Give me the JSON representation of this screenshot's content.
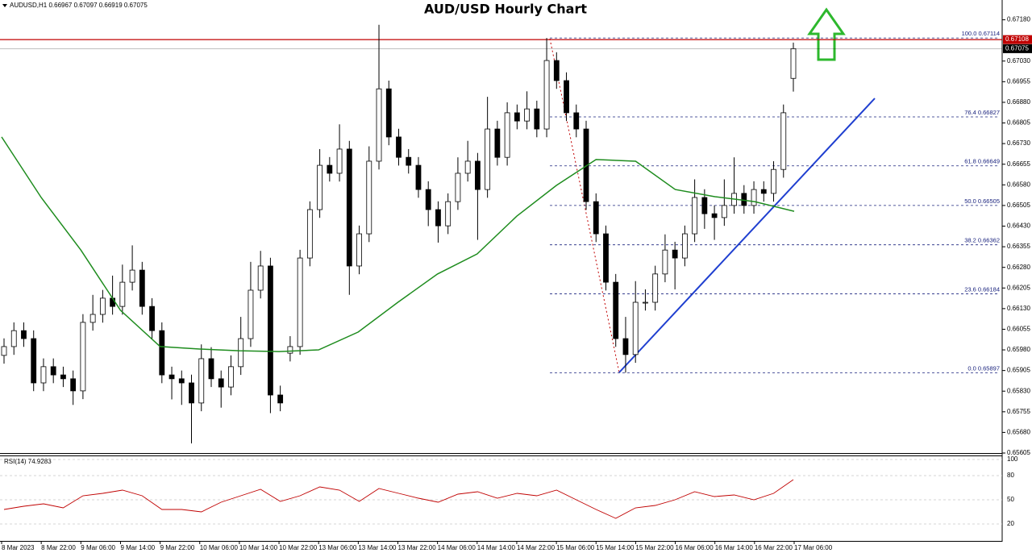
{
  "chart_data": {
    "type": "candlestick",
    "title": "AUD/USD Hourly Chart",
    "header": "AUDUSD,H1  0.66967 0.67097 0.66919 0.67075",
    "x_labels": [
      "8 Mar 2023",
      "8 Mar 22:00",
      "9 Mar 06:00",
      "9 Mar 14:00",
      "9 Mar 22:00",
      "10 Mar 06:00",
      "10 Mar 14:00",
      "10 Mar 22:00",
      "13 Mar 06:00",
      "13 Mar 14:00",
      "13 Mar 22:00",
      "14 Mar 06:00",
      "14 Mar 14:00",
      "14 Mar 22:00",
      "15 Mar 06:00",
      "15 Mar 14:00",
      "15 Mar 22:00",
      "16 Mar 06:00",
      "16 Mar 14:00",
      "16 Mar 22:00",
      "17 Mar 06:00"
    ],
    "ylim": [
      0.65605,
      0.67252
    ],
    "yticks": [
      {
        "value": 0.6718,
        "label": "0.67180"
      },
      {
        "value": 0.6703,
        "label": "0.67030"
      },
      0.66955,
      {
        "value": 0.6688,
        "label": "0.66880"
      },
      0.66805,
      {
        "value": 0.6673,
        "label": "0.66730"
      },
      0.66655,
      {
        "value": 0.6658,
        "label": "0.66580"
      },
      0.66505,
      {
        "value": 0.6643,
        "label": "0.66430"
      },
      0.66355,
      {
        "value": 0.6628,
        "label": "0.66280"
      },
      0.66205,
      {
        "value": 0.6613,
        "label": "0.66130"
      },
      0.66055,
      {
        "value": 0.6598,
        "label": "0.65980"
      },
      0.65905,
      {
        "value": 0.6583,
        "label": "0.65830"
      },
      0.65755,
      {
        "value": 0.6568,
        "label": "0.65680"
      },
      0.65605
    ],
    "up_color": "#ffffff",
    "down_color": "#000000",
    "candles": [
      [
        0.6596,
        0.66022,
        0.6593,
        0.65992
      ],
      [
        0.65992,
        0.6608,
        0.65962,
        0.6605
      ],
      [
        0.6605,
        0.6608,
        0.65991,
        0.66021
      ],
      [
        0.66021,
        0.66051,
        0.6583,
        0.6586
      ],
      [
        0.6586,
        0.65949,
        0.6583,
        0.65919
      ],
      [
        0.65919,
        0.65949,
        0.65859,
        0.65889
      ],
      [
        0.65889,
        0.65919,
        0.65845,
        0.65875
      ],
      [
        0.65875,
        0.65905,
        0.6578,
        0.65831
      ],
      [
        0.65831,
        0.6611,
        0.65801,
        0.6608
      ],
      [
        0.6608,
        0.6618,
        0.6605,
        0.66109
      ],
      [
        0.66109,
        0.66198,
        0.66079,
        0.66168
      ],
      [
        0.66168,
        0.6625,
        0.66108,
        0.66138
      ],
      [
        0.66138,
        0.6629,
        0.66108,
        0.66226
      ],
      [
        0.66226,
        0.6636,
        0.66196,
        0.6627
      ],
      [
        0.6627,
        0.663,
        0.66108,
        0.66138
      ],
      [
        0.66138,
        0.66168,
        0.6602,
        0.6605
      ],
      [
        0.6605,
        0.6608,
        0.65859,
        0.65889
      ],
      [
        0.65889,
        0.65919,
        0.658,
        0.65875
      ],
      [
        0.65875,
        0.65905,
        0.6578,
        0.6586
      ],
      [
        0.6586,
        0.6589,
        0.6564,
        0.65787
      ],
      [
        0.65787,
        0.66,
        0.65757,
        0.65948
      ],
      [
        0.65948,
        0.6599,
        0.65845,
        0.65875
      ],
      [
        0.65875,
        0.65905,
        0.6577,
        0.65845
      ],
      [
        0.65845,
        0.6596,
        0.65815,
        0.65919
      ],
      [
        0.65919,
        0.661,
        0.65889,
        0.66021
      ],
      [
        0.66021,
        0.663,
        0.65991,
        0.66197
      ],
      [
        0.66197,
        0.6634,
        0.66167,
        0.66285
      ],
      [
        0.66285,
        0.66315,
        0.6575,
        0.65816
      ],
      [
        0.65816,
        0.6585,
        0.65757,
        0.65787
      ],
      [
        0.65968,
        0.6603,
        0.65938,
        0.65992
      ],
      [
        0.65992,
        0.66344,
        0.65962,
        0.66314
      ],
      [
        0.66314,
        0.6652,
        0.66284,
        0.6649
      ],
      [
        0.6649,
        0.6671,
        0.6646,
        0.66651
      ],
      [
        0.66651,
        0.66681,
        0.66592,
        0.66622
      ],
      [
        0.66622,
        0.668,
        0.66592,
        0.6671
      ],
      [
        0.6671,
        0.6674,
        0.6618,
        0.66285
      ],
      [
        0.66285,
        0.66432,
        0.66255,
        0.66402
      ],
      [
        0.66402,
        0.6672,
        0.66372,
        0.66666
      ],
      [
        0.66666,
        0.67162,
        0.66636,
        0.66929
      ],
      [
        0.66929,
        0.66959,
        0.66724,
        0.66754
      ],
      [
        0.66754,
        0.66784,
        0.6665,
        0.6668
      ],
      [
        0.6668,
        0.6671,
        0.66621,
        0.66651
      ],
      [
        0.66651,
        0.66681,
        0.66533,
        0.66563
      ],
      [
        0.66563,
        0.66593,
        0.6643,
        0.6649
      ],
      [
        0.6649,
        0.6652,
        0.6637,
        0.66431
      ],
      [
        0.66431,
        0.66549,
        0.66401,
        0.66519
      ],
      [
        0.66519,
        0.6668,
        0.66489,
        0.66622
      ],
      [
        0.66622,
        0.6674,
        0.66592,
        0.66666
      ],
      [
        0.66666,
        0.66696,
        0.6638,
        0.66563
      ],
      [
        0.66563,
        0.669,
        0.66533,
        0.66783
      ],
      [
        0.66783,
        0.66813,
        0.6665,
        0.6668
      ],
      [
        0.6668,
        0.6688,
        0.6665,
        0.66842
      ],
      [
        0.66842,
        0.66872,
        0.66782,
        0.66812
      ],
      [
        0.66812,
        0.6692,
        0.66782,
        0.66856
      ],
      [
        0.66856,
        0.66886,
        0.66753,
        0.66783
      ],
      [
        0.66783,
        0.67114,
        0.66753,
        0.67032
      ],
      [
        0.67032,
        0.67062,
        0.66929,
        0.66959
      ],
      [
        0.66959,
        0.66989,
        0.66812,
        0.66842
      ],
      [
        0.66842,
        0.66872,
        0.66753,
        0.66783
      ],
      [
        0.66783,
        0.66813,
        0.66489,
        0.66519
      ],
      [
        0.66519,
        0.66549,
        0.66372,
        0.66402
      ],
      [
        0.66402,
        0.66432,
        0.66196,
        0.66226
      ],
      [
        0.66226,
        0.66256,
        0.65991,
        0.66021
      ],
      [
        0.66021,
        0.661,
        0.65897,
        0.65963
      ],
      [
        0.65963,
        0.6623,
        0.65933,
        0.66153
      ],
      [
        0.66153,
        0.662,
        0.66123,
        0.66153
      ],
      [
        0.66153,
        0.66286,
        0.66123,
        0.66256
      ],
      [
        0.66256,
        0.664,
        0.66226,
        0.66343
      ],
      [
        0.66343,
        0.66373,
        0.662,
        0.66314
      ],
      [
        0.66314,
        0.66432,
        0.66284,
        0.66402
      ],
      [
        0.66402,
        0.666,
        0.66372,
        0.66534
      ],
      [
        0.66534,
        0.66564,
        0.6642,
        0.66475
      ],
      [
        0.66475,
        0.66505,
        0.6638,
        0.66461
      ],
      [
        0.66461,
        0.666,
        0.66431,
        0.66505
      ],
      [
        0.66505,
        0.6668,
        0.66475,
        0.66549
      ],
      [
        0.66549,
        0.66579,
        0.66475,
        0.66505
      ],
      [
        0.66505,
        0.66593,
        0.66475,
        0.66563
      ],
      [
        0.66563,
        0.66593,
        0.66519,
        0.66549
      ],
      [
        0.66549,
        0.66666,
        0.66519,
        0.66636
      ],
      [
        0.66636,
        0.66872,
        0.66606,
        0.66842
      ],
      [
        0.66967,
        0.67097,
        0.66919,
        0.67075
      ]
    ],
    "ma": {
      "color": "#1e8c1e",
      "values": [
        0.66754,
        0.66534,
        0.66343,
        0.66124,
        0.65992,
        0.65983,
        0.65977,
        0.65974,
        0.6598,
        0.66045,
        0.66153,
        0.66256,
        0.66329,
        0.66466,
        0.66578,
        0.66672,
        0.66666,
        0.66563,
        0.66537,
        0.66519,
        0.66484
      ]
    },
    "fib_levels": [
      {
        "value": 0.67114,
        "label": "100.0 0.67114"
      },
      {
        "value": 0.66827,
        "label": "76.4 0.66827"
      },
      {
        "value": 0.66649,
        "label": "61.8 0.66649"
      },
      {
        "value": 0.66505,
        "label": "50.0 0.66505"
      },
      {
        "value": 0.66362,
        "label": "38.2 0.66362"
      },
      {
        "value": 0.66184,
        "label": "23.6 0.66184"
      },
      {
        "value": 0.65897,
        "label": "0.0 0.65897"
      }
    ],
    "fib_color": "#1a237e",
    "price_lines": [
      {
        "value": 0.67108,
        "color": "#c00000"
      },
      {
        "value": 0.67075,
        "color": "#000000"
      }
    ],
    "rsi": {
      "title": "RSI(14) 74.9283",
      "color": "#c00000",
      "ylim": [
        0,
        100
      ],
      "yticks": [
        100,
        80,
        50,
        20
      ],
      "values": [
        38,
        42,
        45,
        40,
        55,
        58,
        62,
        55,
        38,
        38,
        35,
        47,
        55,
        63,
        48,
        55,
        66,
        62,
        48,
        64,
        58,
        52,
        47,
        57,
        60,
        52,
        58,
        55,
        62,
        50,
        38,
        27,
        40,
        43,
        50,
        60,
        54,
        56,
        50,
        58,
        75
      ]
    }
  }
}
